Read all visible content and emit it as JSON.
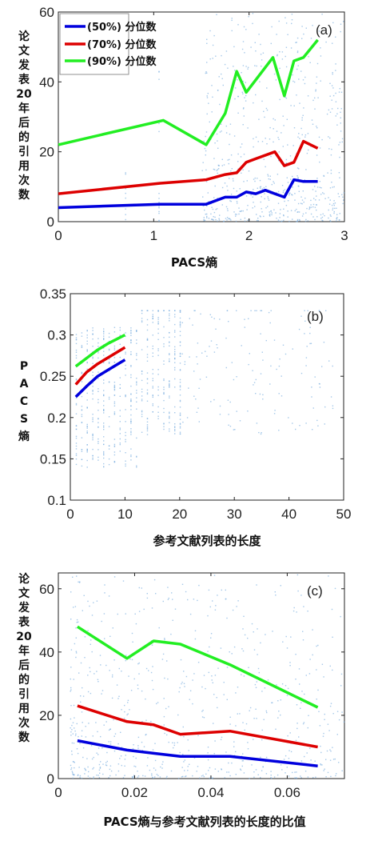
{
  "chart_data": [
    {
      "type": "line",
      "panel_label": "(a)",
      "xlabel": "PACS熵",
      "ylabel": "论文发表20年后的引用次数",
      "xlim": [
        0,
        3
      ],
      "ylim": [
        0,
        60
      ],
      "xticks": [
        "0",
        "1",
        "2",
        "3"
      ],
      "yticks": [
        "0",
        "20",
        "40",
        "60"
      ],
      "legend_position": "top-left",
      "series": [
        {
          "name": "(50%) 分位数",
          "color": "#0000dd",
          "x": [
            0,
            1.07,
            1.55,
            1.75,
            1.87,
            1.97,
            2.07,
            2.17,
            2.27,
            2.37,
            2.47,
            2.57,
            2.72
          ],
          "y": [
            4,
            5,
            5,
            7,
            7,
            8.5,
            8,
            9,
            8,
            7,
            12,
            11.5,
            11.5
          ]
        },
        {
          "name": "(70%) 分位数",
          "color": "#dd0000",
          "x": [
            0,
            1.07,
            1.55,
            1.75,
            1.87,
            1.97,
            2.07,
            2.27,
            2.37,
            2.47,
            2.57,
            2.72
          ],
          "y": [
            8,
            11,
            12,
            13.5,
            14,
            17,
            18,
            20,
            16,
            17,
            23,
            21
          ]
        },
        {
          "name": "(90%) 分位数",
          "color": "#22ee22",
          "x": [
            0,
            1.1,
            1.55,
            1.75,
            1.87,
            1.97,
            2.25,
            2.37,
            2.47,
            2.57,
            2.72
          ],
          "y": [
            22,
            29,
            22,
            31,
            43,
            37,
            47,
            36,
            46,
            47,
            52
          ]
        }
      ]
    },
    {
      "type": "line",
      "panel_label": "(b)",
      "xlabel": "参考文献列表的长度",
      "ylabel": "PACS熵",
      "xlim": [
        0,
        50
      ],
      "ylim": [
        0.1,
        0.35
      ],
      "xticks": [
        "0",
        "10",
        "20",
        "30",
        "40",
        "50"
      ],
      "yticks": [
        "0.1",
        "0.15",
        "0.2",
        "0.25",
        "0.3",
        "0.35"
      ],
      "series": [
        {
          "color": "#0000dd",
          "x": [
            1,
            3,
            5,
            7,
            10
          ],
          "y": [
            0.225,
            0.238,
            0.25,
            0.258,
            0.27
          ]
        },
        {
          "color": "#dd0000",
          "x": [
            1,
            3,
            5,
            7,
            10
          ],
          "y": [
            0.24,
            0.255,
            0.265,
            0.273,
            0.285
          ]
        },
        {
          "color": "#22ee22",
          "x": [
            1,
            3,
            5,
            7,
            10
          ],
          "y": [
            0.262,
            0.272,
            0.282,
            0.29,
            0.3
          ]
        }
      ]
    },
    {
      "type": "line",
      "panel_label": "(c)",
      "xlabel": "PACS熵与参考文献列表的长度的比值",
      "ylabel": "论文发表20年后的引用次数",
      "xlim": [
        0,
        0.075
      ],
      "ylim": [
        0,
        65
      ],
      "xticks": [
        "0",
        "0.02",
        "0.04",
        "0.06"
      ],
      "yticks": [
        "0",
        "20",
        "40",
        "60"
      ],
      "series": [
        {
          "color": "#0000dd",
          "x": [
            0.005,
            0.018,
            0.025,
            0.032,
            0.045,
            0.068
          ],
          "y": [
            12,
            9,
            8,
            7,
            7,
            4
          ]
        },
        {
          "color": "#dd0000",
          "x": [
            0.005,
            0.018,
            0.025,
            0.032,
            0.045,
            0.068
          ],
          "y": [
            23,
            18,
            17,
            14,
            15,
            10
          ]
        },
        {
          "color": "#22ee22",
          "x": [
            0.005,
            0.018,
            0.025,
            0.032,
            0.045,
            0.068
          ],
          "y": [
            48,
            38,
            43.5,
            42.5,
            36,
            22.5
          ]
        }
      ]
    }
  ]
}
